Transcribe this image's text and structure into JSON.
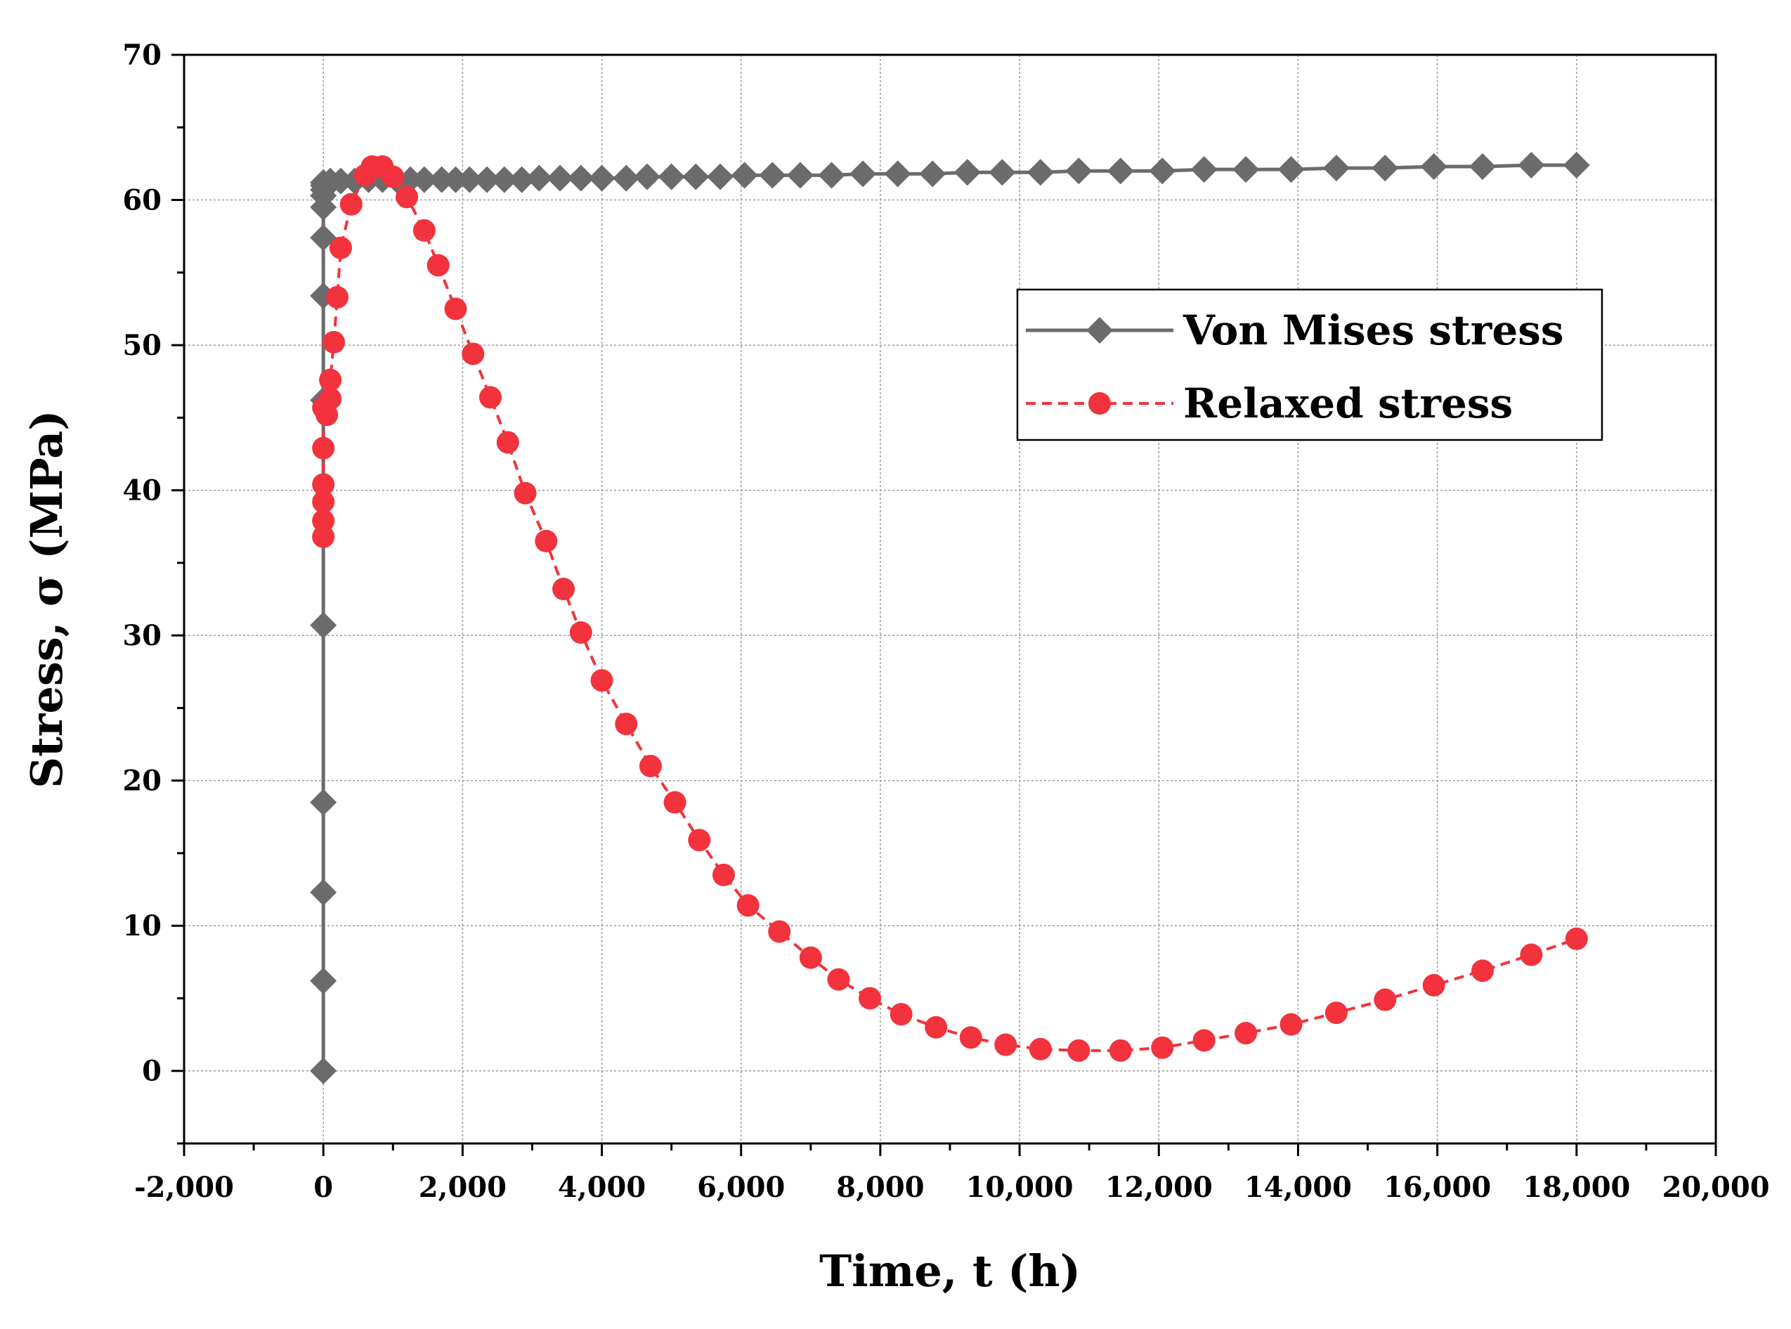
{
  "chart_data": {
    "type": "line",
    "xlabel": "Time, t (h)",
    "ylabel": "Stress, σ (MPa)",
    "xlim": [
      -2000,
      20000
    ],
    "ylim": [
      -5,
      70
    ],
    "xticks": [
      -2000,
      0,
      2000,
      4000,
      6000,
      8000,
      10000,
      12000,
      14000,
      16000,
      18000,
      20000
    ],
    "xtick_labels": [
      "-2,000",
      "0",
      "2,000",
      "4,000",
      "6,000",
      "8,000",
      "10,000",
      "12,000",
      "14,000",
      "16,000",
      "18,000",
      "20,000"
    ],
    "yticks": [
      0,
      10,
      20,
      30,
      40,
      50,
      60,
      70
    ],
    "ytick_labels": [
      "0",
      "10",
      "20",
      "30",
      "40",
      "50",
      "60",
      "70"
    ],
    "grid": true,
    "legend_position": "top-right",
    "series": [
      {
        "name": "Von Mises stress",
        "color": "#6b6b6b",
        "marker": "diamond",
        "x": [
          0,
          0,
          0,
          0,
          0,
          0,
          0,
          0,
          0,
          0,
          0,
          0,
          0,
          100,
          250,
          450,
          650,
          850,
          1050,
          1250,
          1450,
          1700,
          1900,
          2100,
          2350,
          2600,
          2850,
          3100,
          3400,
          3700,
          4000,
          4350,
          4650,
          5000,
          5350,
          5700,
          6050,
          6450,
          6850,
          7300,
          7750,
          8250,
          8750,
          9250,
          9750,
          10300,
          10850,
          11450,
          12050,
          12650,
          13250,
          13900,
          14550,
          15250,
          15950,
          16650,
          17350,
          18000
        ],
        "y": [
          0,
          6.2,
          12.3,
          18.5,
          30.7,
          46.2,
          53.4,
          57.4,
          59.5,
          60.3,
          60.7,
          61.0,
          61.2,
          61.3,
          61.3,
          61.3,
          61.4,
          61.4,
          61.4,
          61.4,
          61.4,
          61.4,
          61.4,
          61.4,
          61.4,
          61.4,
          61.4,
          61.5,
          61.5,
          61.5,
          61.5,
          61.5,
          61.6,
          61.6,
          61.6,
          61.6,
          61.7,
          61.7,
          61.7,
          61.7,
          61.8,
          61.8,
          61.8,
          61.9,
          61.9,
          61.9,
          62.0,
          62.0,
          62.0,
          62.1,
          62.1,
          62.1,
          62.2,
          62.2,
          62.3,
          62.3,
          62.4,
          62.4
        ]
      },
      {
        "name": "Relaxed stress",
        "color": "#f2323c",
        "marker": "circle",
        "x": [
          0,
          0,
          0,
          0,
          0,
          0,
          50,
          100,
          100,
          150,
          200,
          250,
          400,
          600,
          700,
          850,
          1000,
          1200,
          1450,
          1650,
          1900,
          2150,
          2400,
          2650,
          2900,
          3200,
          3450,
          3700,
          4000,
          4350,
          4700,
          5050,
          5400,
          5750,
          6100,
          6550,
          7000,
          7400,
          7850,
          8300,
          8800,
          9300,
          9800,
          10300,
          10850,
          11450,
          12050,
          12650,
          13250,
          13900,
          14550,
          15250,
          15950,
          16650,
          17350,
          18000
        ],
        "y": [
          36.8,
          37.9,
          39.2,
          40.4,
          42.9,
          45.7,
          45.2,
          46.3,
          47.6,
          50.2,
          53.3,
          56.7,
          59.7,
          61.7,
          62.3,
          62.3,
          61.6,
          60.2,
          57.9,
          55.5,
          52.5,
          49.4,
          46.4,
          43.3,
          39.8,
          36.5,
          33.2,
          30.2,
          26.9,
          23.9,
          21.0,
          18.5,
          15.9,
          13.5,
          11.4,
          9.6,
          7.8,
          6.3,
          5.0,
          3.9,
          3.0,
          2.3,
          1.8,
          1.5,
          1.4,
          1.4,
          1.6,
          2.1,
          2.6,
          3.2,
          4.0,
          4.9,
          5.9,
          6.9,
          8.0,
          9.1
        ]
      }
    ]
  }
}
